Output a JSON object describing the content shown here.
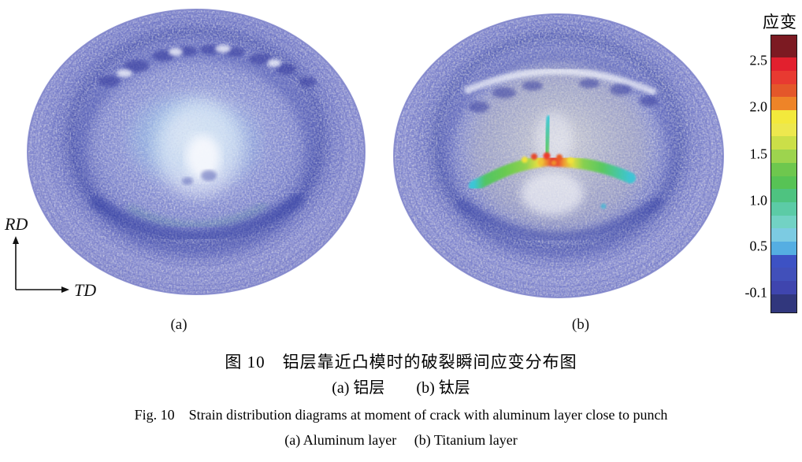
{
  "panels": {
    "a_label": "(a)",
    "b_label": "(b)"
  },
  "orientation": {
    "vertical": "RD",
    "horizontal": "TD"
  },
  "colorbar": {
    "title": "应变",
    "ticks": [
      {
        "label": "2.5",
        "pct": 9.3
      },
      {
        "label": "2.0",
        "pct": 26.1
      },
      {
        "label": "1.5",
        "pct": 42.8
      },
      {
        "label": "1.0",
        "pct": 59.5
      },
      {
        "label": "0.5",
        "pct": 75.9
      },
      {
        "label": "-0.1",
        "pct": 92.6
      }
    ],
    "segments": [
      {
        "color": "#7C1A22",
        "weight": 1.7
      },
      {
        "color": "#E2202E",
        "weight": 1
      },
      {
        "color": "#E83A31",
        "weight": 1
      },
      {
        "color": "#E4572A",
        "weight": 1
      },
      {
        "color": "#EE8428",
        "weight": 1
      },
      {
        "color": "#F3E93C",
        "weight": 1
      },
      {
        "color": "#EDE84E",
        "weight": 1
      },
      {
        "color": "#CBDF48",
        "weight": 1
      },
      {
        "color": "#9DD44E",
        "weight": 1
      },
      {
        "color": "#6EC74E",
        "weight": 1
      },
      {
        "color": "#57C355",
        "weight": 1
      },
      {
        "color": "#4EC380",
        "weight": 1
      },
      {
        "color": "#5CCBA6",
        "weight": 1
      },
      {
        "color": "#72D2C4",
        "weight": 1
      },
      {
        "color": "#7CCBE2",
        "weight": 1
      },
      {
        "color": "#55AEE2",
        "weight": 1
      },
      {
        "color": "#3D52C4",
        "weight": 1
      },
      {
        "color": "#4150BA",
        "weight": 1
      },
      {
        "color": "#3F45AE",
        "weight": 1
      },
      {
        "color": "#31377D",
        "weight": 1.4
      }
    ]
  },
  "figure_caption": {
    "zh_title": "图 10　铝层靠近凸模时的破裂瞬间应变分布图",
    "zh_subtitle": "(a) 铝层　　(b) 钛层",
    "en_title": "Fig. 10　Strain distribution diagrams at moment of crack with aluminum layer close to punch",
    "en_subtitle": "(a) Aluminum layer　 (b) Titanium layer"
  },
  "chart_data": {
    "type": "heatmap",
    "title": "图 10 铝层靠近凸模时的破裂瞬间应变分布图 / Fig. 10 Strain distribution diagrams at moment of crack with aluminum layer close to punch",
    "colorbar": {
      "label": "应变",
      "tick_values": [
        2.5,
        2.0,
        1.5,
        1.0,
        0.5,
        -0.1
      ],
      "range_top": 2.75,
      "range_bottom": -0.25,
      "scale_colors_top_to_bottom": [
        "dark red",
        "red",
        "orange",
        "yellow",
        "yellow-green",
        "green",
        "teal",
        "cyan",
        "light blue",
        "blue",
        "navy"
      ]
    },
    "orientation_axes": {
      "vertical": "RD",
      "horizontal": "TD"
    },
    "panels": [
      {
        "id": "(a)",
        "name_zh": "铝层",
        "name_en": "Aluminum layer",
        "summary": "Circular drawn dome, speckled blue field: near-uniform low strain about -0.1 to 0.5; slightly higher (light blue/cyan, ~0.5) halo around a bright low-strain pole just above center; dark blue ring at die radius; no crack band."
      },
      {
        "id": "(b)",
        "name_zh": "钛层",
        "name_en": "Titanium layer",
        "summary": "Same dome with an arc-shaped strain-localization (crack) band across the pole: ~1.0-1.5 (green) along the band, peaks ~2.0-2.75 (yellow/orange/red) at band center, ~0.5-1.0 (cyan) at both tips; short vertical cyan-green branch above center; white highlight arc and dark blue ring near die radius."
      }
    ]
  }
}
